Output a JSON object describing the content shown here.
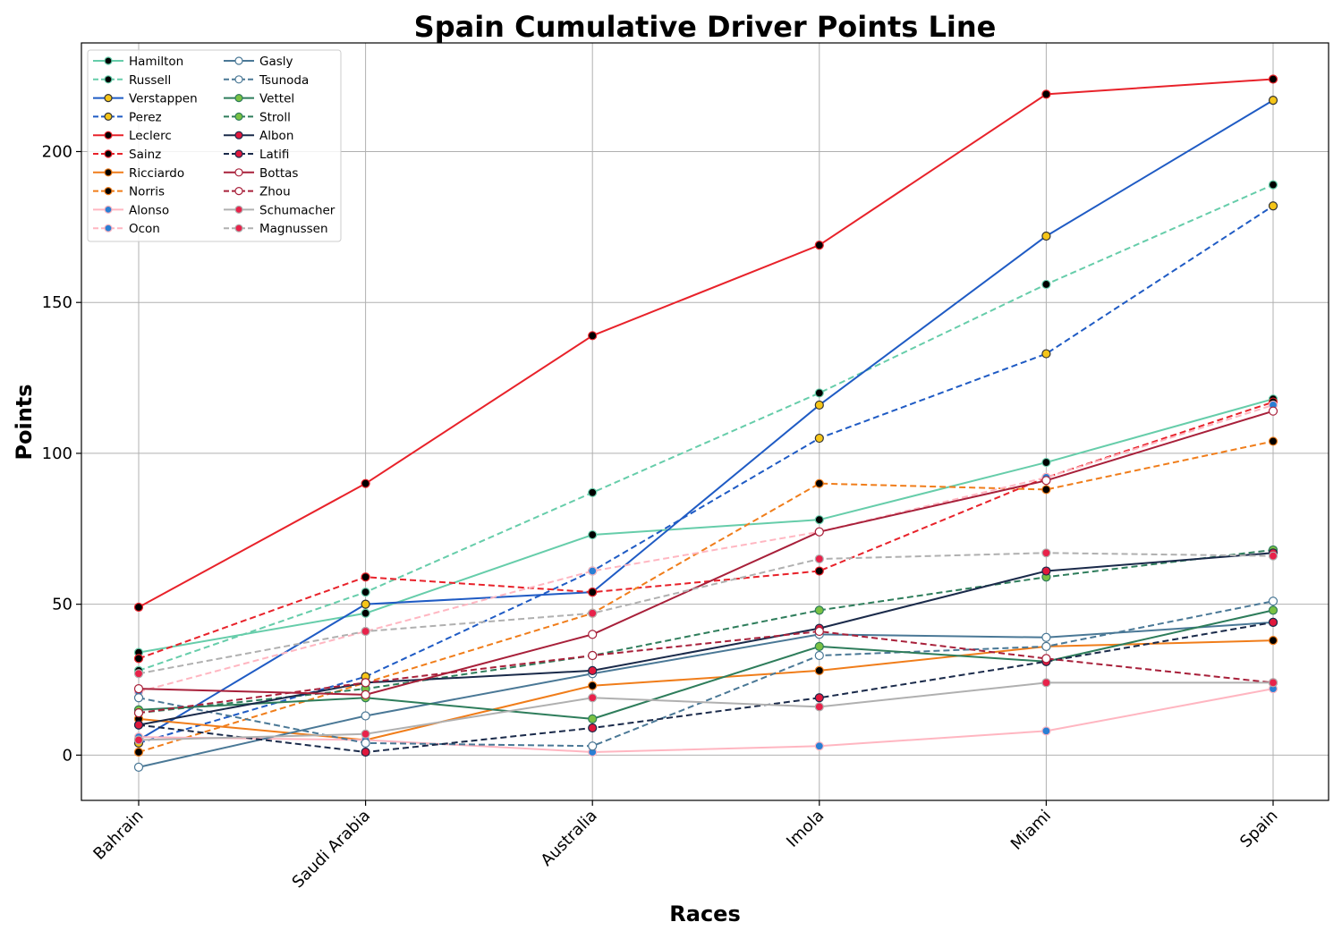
{
  "chart_data": {
    "type": "line",
    "title": "Spain Cumulative Driver Points Line",
    "xlabel": "Races",
    "ylabel": "Points",
    "categories": [
      "Bahrain",
      "Saudi Arabia",
      "Australia",
      "Imola",
      "Miami",
      "Spain"
    ],
    "yticks": [
      0,
      50,
      100,
      150,
      200
    ],
    "ylim": [
      -15,
      236
    ],
    "grid": true,
    "legend_position": "top-left",
    "series": [
      {
        "name": "Hamilton",
        "color": "#66cdaa",
        "dash": false,
        "marker_fill": "#000000",
        "marker_edge": "#66cdaa",
        "values": [
          34,
          47,
          73,
          78,
          97,
          118
        ]
      },
      {
        "name": "Russell",
        "color": "#66cdaa",
        "dash": true,
        "marker_fill": "#000000",
        "marker_edge": "#66cdaa",
        "values": [
          28,
          54,
          87,
          120,
          156,
          189
        ]
      },
      {
        "name": "Verstappen",
        "color": "#1f5bc4",
        "dash": false,
        "marker_fill": "#f5c518",
        "marker_edge": "#333333",
        "values": [
          5,
          50,
          54,
          116,
          172,
          217
        ]
      },
      {
        "name": "Perez",
        "color": "#1f5bc4",
        "dash": true,
        "marker_fill": "#f5c518",
        "marker_edge": "#333333",
        "values": [
          4,
          26,
          61,
          105,
          133,
          182
        ]
      },
      {
        "name": "Leclerc",
        "color": "#e8222a",
        "dash": false,
        "marker_fill": "#000000",
        "marker_edge": "#e8222a",
        "values": [
          49,
          90,
          139,
          169,
          219,
          224
        ]
      },
      {
        "name": "Sainz",
        "color": "#e8222a",
        "dash": true,
        "marker_fill": "#000000",
        "marker_edge": "#e8222a",
        "values": [
          32,
          59,
          54,
          61,
          92,
          117
        ]
      },
      {
        "name": "Ricciardo",
        "color": "#f07d1a",
        "dash": false,
        "marker_fill": "#000000",
        "marker_edge": "#f07d1a",
        "values": [
          12,
          5,
          23,
          28,
          36,
          38
        ]
      },
      {
        "name": "Norris",
        "color": "#f07d1a",
        "dash": true,
        "marker_fill": "#000000",
        "marker_edge": "#f07d1a",
        "values": [
          1,
          24,
          47,
          90,
          88,
          104
        ]
      },
      {
        "name": "Alonso",
        "color": "#ffb6c1",
        "dash": false,
        "marker_fill": "#2a7fd4",
        "marker_edge": "#ffb6c1",
        "values": [
          6,
          5,
          1,
          3,
          8,
          22
        ]
      },
      {
        "name": "Ocon",
        "color": "#ffb6c1",
        "dash": true,
        "marker_fill": "#2a7fd4",
        "marker_edge": "#ffb6c1",
        "values": [
          21,
          41,
          61,
          74,
          92,
          116
        ]
      },
      {
        "name": "Gasly",
        "color": "#4a7896",
        "dash": false,
        "marker_fill": "#ffffff",
        "marker_edge": "#4a7896",
        "values": [
          -4,
          13,
          27,
          40,
          39,
          44
        ]
      },
      {
        "name": "Tsunoda",
        "color": "#4a7896",
        "dash": true,
        "marker_fill": "#ffffff",
        "marker_edge": "#4a7896",
        "values": [
          19,
          4,
          3,
          33,
          36,
          51
        ]
      },
      {
        "name": "Vettel",
        "color": "#2e7d5b",
        "dash": false,
        "marker_fill": "#7ac143",
        "marker_edge": "#2e7d5b",
        "values": [
          15,
          19,
          12,
          36,
          31,
          48
        ]
      },
      {
        "name": "Stroll",
        "color": "#2e7d5b",
        "dash": true,
        "marker_fill": "#7ac143",
        "marker_edge": "#2e7d5b",
        "values": [
          14,
          22,
          33,
          48,
          59,
          68
        ]
      },
      {
        "name": "Albon",
        "color": "#1a2a4a",
        "dash": false,
        "marker_fill": "#e0183c",
        "marker_edge": "#1a2a4a",
        "values": [
          10,
          24,
          28,
          42,
          61,
          67
        ]
      },
      {
        "name": "Latifi",
        "color": "#1a2a4a",
        "dash": true,
        "marker_fill": "#e0183c",
        "marker_edge": "#1a2a4a",
        "values": [
          10,
          1,
          9,
          19,
          31,
          44
        ]
      },
      {
        "name": "Bottas",
        "color": "#a8203a",
        "dash": false,
        "marker_fill": "#ffffff",
        "marker_edge": "#a8203a",
        "values": [
          22,
          20,
          40,
          74,
          91,
          114
        ]
      },
      {
        "name": "Zhou",
        "color": "#a8203a",
        "dash": true,
        "marker_fill": "#ffffff",
        "marker_edge": "#a8203a",
        "values": [
          14,
          24,
          33,
          41,
          32,
          24
        ]
      },
      {
        "name": "Schumacher",
        "color": "#b0b0b0",
        "dash": false,
        "marker_fill": "#e8224a",
        "marker_edge": "#b0b0b0",
        "values": [
          5,
          7,
          19,
          16,
          24,
          24
        ]
      },
      {
        "name": "Magnussen",
        "color": "#b0b0b0",
        "dash": true,
        "marker_fill": "#e8224a",
        "marker_edge": "#b0b0b0",
        "values": [
          27,
          41,
          47,
          65,
          67,
          66
        ]
      }
    ]
  }
}
